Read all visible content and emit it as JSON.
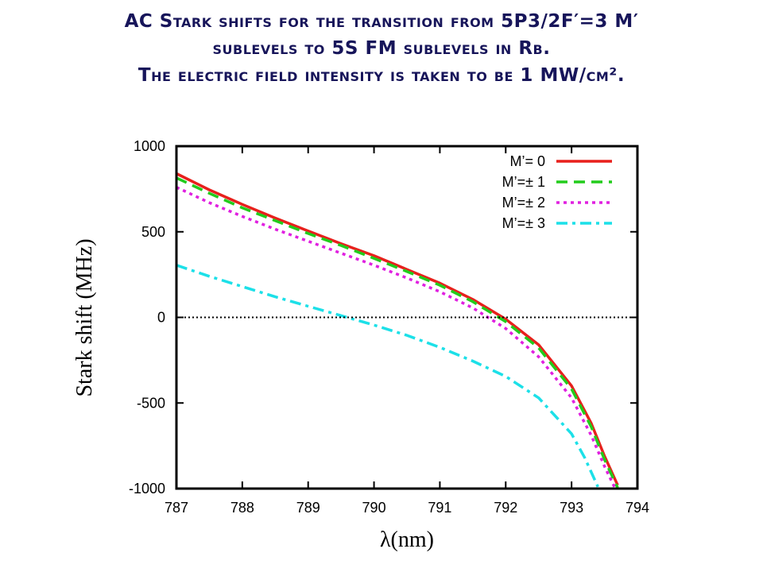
{
  "slide_title": {
    "line1": "AC Stark shifts for the transition from 5P3/2F′=3 M′",
    "line2": "sublevels to 5S FM sublevels in Rb.",
    "line3": "The electric field intensity is taken to be 1 MW/cm²."
  },
  "colors": {
    "title": "#17155a",
    "series": [
      "#e8201c",
      "#22cc1c",
      "#e020e0",
      "#1ce0e8"
    ]
  },
  "chart_data": {
    "type": "line",
    "xlabel": "λ(nm)",
    "ylabel": "Stark shift (MHz)",
    "xlim": [
      787,
      794
    ],
    "ylim": [
      -1000,
      1000
    ],
    "xticks": [
      "787",
      "788",
      "789",
      "790",
      "791",
      "792",
      "793",
      "794"
    ],
    "yticks": [
      "-1000",
      "-500",
      "0",
      "500",
      "1000"
    ],
    "zero_line": true,
    "grid": false,
    "legend_position": "top-right",
    "series": [
      {
        "name": "M’= 0",
        "style": "solid",
        "x": [
          787.0,
          787.5,
          788.0,
          788.5,
          789.0,
          789.5,
          790.0,
          790.5,
          791.0,
          791.5,
          792.0,
          792.5,
          793.0,
          793.3,
          793.5,
          793.7
        ],
        "y": [
          840,
          745,
          660,
          580,
          505,
          430,
          360,
          280,
          200,
          105,
          -10,
          -160,
          -400,
          -620,
          -810,
          -980
        ]
      },
      {
        "name": "M’=± 1",
        "style": "dashed",
        "x": [
          787.0,
          787.5,
          788.0,
          788.5,
          789.0,
          789.5,
          790.0,
          790.5,
          791.0,
          791.5,
          792.0,
          792.5,
          793.0,
          793.3,
          793.5,
          793.7
        ],
        "y": [
          815,
          725,
          640,
          565,
          490,
          420,
          345,
          268,
          188,
          92,
          -25,
          -178,
          -418,
          -640,
          -830,
          -995
        ]
      },
      {
        "name": "M’=± 2",
        "style": "dotted",
        "x": [
          787.0,
          787.5,
          788.0,
          788.5,
          789.0,
          789.5,
          790.0,
          790.5,
          791.0,
          791.5,
          792.0,
          792.5,
          793.0,
          793.3,
          793.5,
          793.65
        ],
        "y": [
          760,
          670,
          590,
          515,
          445,
          375,
          305,
          230,
          150,
          55,
          -65,
          -230,
          -470,
          -690,
          -870,
          -990
        ]
      },
      {
        "name": "M’=± 3",
        "style": "dashdot",
        "x": [
          787.0,
          787.5,
          788.0,
          788.5,
          789.0,
          789.5,
          790.0,
          790.5,
          791.0,
          791.5,
          792.0,
          792.5,
          793.0,
          793.2,
          793.4
        ],
        "y": [
          305,
          240,
          180,
          120,
          65,
          10,
          -45,
          -105,
          -175,
          -255,
          -345,
          -470,
          -680,
          -820,
          -990
        ]
      }
    ]
  }
}
